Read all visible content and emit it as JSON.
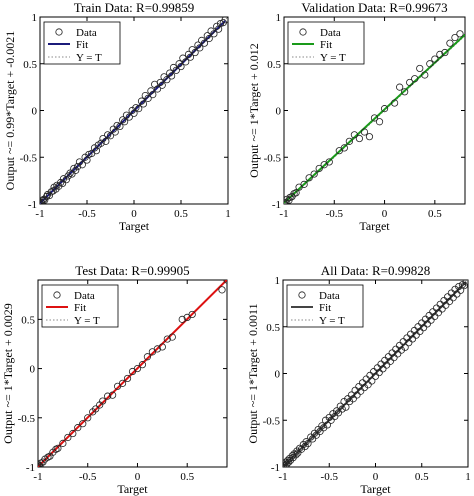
{
  "chart_data": [
    {
      "type": "scatter",
      "title": "Train Data: R=0.99859",
      "xlabel": "Target",
      "ylabel": "Output ~= 0.99*Target + -0.0021",
      "xlim": [
        -1,
        1
      ],
      "ylim": [
        -1,
        1
      ],
      "xticks": [
        "-1",
        "-0.5",
        "0",
        "0.5",
        "1"
      ],
      "yticks": [
        "-1",
        "-0.5",
        "0",
        "0.5",
        "1"
      ],
      "grid": false,
      "legend_position": "top-left",
      "legend": [
        "Data",
        "Fit",
        "Y = T"
      ],
      "fit": {
        "slope": 0.99,
        "intercept": -0.0021,
        "color": "#1b1b7a"
      },
      "data_range": [
        -1,
        0.97
      ],
      "series": [
        {
          "name": "Data",
          "type": "scatter",
          "x": [
            -1,
            -0.99,
            -0.98,
            -0.97,
            -0.96,
            -0.95,
            -0.93,
            -0.92,
            -0.9,
            -0.88,
            -0.86,
            -0.85,
            -0.83,
            -0.82,
            -0.8,
            -0.78,
            -0.76,
            -0.75,
            -0.72,
            -0.7,
            -0.68,
            -0.66,
            -0.64,
            -0.62,
            -0.6,
            -0.58,
            -0.55,
            -0.52,
            -0.5,
            -0.48,
            -0.45,
            -0.42,
            -0.4,
            -0.38,
            -0.35,
            -0.33,
            -0.3,
            -0.28,
            -0.25,
            -0.22,
            -0.2,
            -0.18,
            -0.15,
            -0.12,
            -0.1,
            -0.08,
            -0.05,
            -0.02,
            0,
            0.02,
            0.05,
            0.08,
            0.1,
            0.12,
            0.15,
            0.18,
            0.2,
            0.22,
            0.25,
            0.28,
            0.3,
            0.32,
            0.35,
            0.38,
            0.4,
            0.42,
            0.45,
            0.48,
            0.5,
            0.52,
            0.55,
            0.58,
            0.6,
            0.62,
            0.65,
            0.68,
            0.7,
            0.72,
            0.75,
            0.78,
            0.8,
            0.82,
            0.85,
            0.88,
            0.9,
            0.92,
            0.95,
            0.97
          ],
          "y": [
            -1,
            -0.98,
            -0.99,
            -0.96,
            -0.95,
            -0.96,
            -0.92,
            -0.9,
            -0.91,
            -0.87,
            -0.86,
            -0.82,
            -0.84,
            -0.8,
            -0.81,
            -0.77,
            -0.78,
            -0.73,
            -0.74,
            -0.7,
            -0.67,
            -0.68,
            -0.62,
            -0.64,
            -0.6,
            -0.55,
            -0.58,
            -0.5,
            -0.53,
            -0.47,
            -0.46,
            -0.4,
            -0.43,
            -0.37,
            -0.35,
            -0.3,
            -0.33,
            -0.26,
            -0.27,
            -0.2,
            -0.23,
            -0.16,
            -0.17,
            -0.1,
            -0.12,
            -0.05,
            -0.07,
            0,
            -0.03,
            0.03,
            0.02,
            0.1,
            0.07,
            0.16,
            0.13,
            0.21,
            0.17,
            0.28,
            0.23,
            0.3,
            0.27,
            0.36,
            0.33,
            0.4,
            0.37,
            0.46,
            0.43,
            0.5,
            0.47,
            0.56,
            0.52,
            0.6,
            0.57,
            0.65,
            0.62,
            0.7,
            0.67,
            0.75,
            0.72,
            0.8,
            0.77,
            0.85,
            0.82,
            0.9,
            0.87,
            0.93,
            0.94,
            0.97
          ]
        }
      ]
    },
    {
      "type": "scatter",
      "title": "Validation Data: R=0.99673",
      "xlabel": "Target",
      "ylabel": "Output ~= 1*Target + 0.012",
      "xlim": [
        -1,
        0.8
      ],
      "ylim": [
        -1,
        1
      ],
      "xticks": [
        "-1",
        "-0.5",
        "0",
        "0.5"
      ],
      "yticks": [
        "-1",
        "-0.5",
        "0",
        "0.5",
        "1"
      ],
      "grid": false,
      "legend_position": "top-left",
      "legend": [
        "Data",
        "Fit",
        "Y = T"
      ],
      "fit": {
        "slope": 1,
        "intercept": 0.012,
        "color": "#1a9a1a"
      },
      "data_range": [
        -1,
        0.8
      ],
      "series": [
        {
          "name": "Data",
          "type": "scatter",
          "x": [
            -1,
            -0.98,
            -0.97,
            -0.95,
            -0.94,
            -0.92,
            -0.9,
            -0.88,
            -0.85,
            -0.8,
            -0.75,
            -0.7,
            -0.65,
            -0.6,
            -0.55,
            -0.45,
            -0.4,
            -0.35,
            -0.3,
            -0.25,
            -0.2,
            -0.15,
            -0.1,
            -0.05,
            0,
            0.1,
            0.15,
            0.2,
            0.25,
            0.3,
            0.35,
            0.4,
            0.45,
            0.5,
            0.55,
            0.6,
            0.65,
            0.7,
            0.75
          ],
          "y": [
            -0.98,
            -0.99,
            -0.95,
            -0.96,
            -0.93,
            -0.92,
            -0.89,
            -0.88,
            -0.82,
            -0.79,
            -0.72,
            -0.68,
            -0.62,
            -0.58,
            -0.55,
            -0.43,
            -0.4,
            -0.33,
            -0.26,
            -0.3,
            -0.23,
            -0.28,
            -0.08,
            -0.12,
            0.02,
            0.08,
            0.25,
            0.2,
            0.3,
            0.34,
            0.45,
            0.38,
            0.5,
            0.55,
            0.6,
            0.62,
            0.72,
            0.78,
            0.82
          ]
        }
      ]
    },
    {
      "type": "scatter",
      "title": "Test Data: R=0.99905",
      "xlabel": "Target",
      "ylabel": "Output ~= 1*Target + 0.0029",
      "xlim": [
        -1,
        0.9
      ],
      "ylim": [
        -1,
        0.9
      ],
      "xticks": [
        "-1",
        "-0.5",
        "0",
        "0.5"
      ],
      "yticks": [
        "-1",
        "-0.5",
        "0",
        "0.5"
      ],
      "grid": false,
      "legend_position": "top-left",
      "legend": [
        "Data",
        "Fit",
        "Y = T"
      ],
      "fit": {
        "slope": 1,
        "intercept": 0.0029,
        "color": "#dd1111"
      },
      "data_range": [
        -1,
        0.9
      ],
      "series": [
        {
          "name": "Data",
          "type": "scatter",
          "x": [
            -1,
            -0.99,
            -0.98,
            -0.97,
            -0.95,
            -0.93,
            -0.9,
            -0.88,
            -0.85,
            -0.82,
            -0.8,
            -0.75,
            -0.7,
            -0.65,
            -0.6,
            -0.55,
            -0.5,
            -0.45,
            -0.42,
            -0.38,
            -0.35,
            -0.3,
            -0.25,
            -0.2,
            -0.15,
            -0.1,
            -0.05,
            0,
            0.05,
            0.1,
            0.15,
            0.2,
            0.25,
            0.3,
            0.35,
            0.45,
            0.5,
            0.55,
            0.85,
            0.9
          ],
          "y": [
            -1,
            -0.98,
            -0.99,
            -0.96,
            -0.95,
            -0.92,
            -0.9,
            -0.89,
            -0.85,
            -0.82,
            -0.81,
            -0.76,
            -0.7,
            -0.66,
            -0.6,
            -0.56,
            -0.5,
            -0.44,
            -0.41,
            -0.37,
            -0.33,
            -0.28,
            -0.27,
            -0.18,
            -0.15,
            -0.1,
            -0.03,
            0,
            0.04,
            0.12,
            0.17,
            0.2,
            0.22,
            0.3,
            0.32,
            0.5,
            0.52,
            0.55,
            0.8,
            0.9
          ]
        }
      ]
    },
    {
      "type": "scatter",
      "title": "All Data: R=0.99828",
      "xlabel": "Target",
      "ylabel": "Output ~= 1*Target + 0.0011",
      "xlim": [
        -1,
        1
      ],
      "ylim": [
        -1,
        1
      ],
      "xticks": [
        "-1",
        "-0.5",
        "0",
        "0.5",
        "1"
      ],
      "yticks": [
        "-1",
        "-0.5",
        "0",
        "0.5",
        "1"
      ],
      "grid": false,
      "legend_position": "top-left",
      "legend": [
        "Data",
        "Fit",
        "Y = T"
      ],
      "fit": {
        "slope": 1,
        "intercept": 0.0011,
        "color": "#444444"
      },
      "data_range": [
        -1,
        0.98
      ],
      "series": [
        {
          "name": "Data",
          "type": "scatter",
          "x": [
            -1,
            -0.99,
            -0.98,
            -0.97,
            -0.96,
            -0.95,
            -0.94,
            -0.93,
            -0.92,
            -0.9,
            -0.89,
            -0.88,
            -0.86,
            -0.85,
            -0.84,
            -0.82,
            -0.8,
            -0.78,
            -0.76,
            -0.75,
            -0.73,
            -0.7,
            -0.68,
            -0.66,
            -0.64,
            -0.62,
            -0.6,
            -0.58,
            -0.56,
            -0.54,
            -0.52,
            -0.5,
            -0.48,
            -0.46,
            -0.44,
            -0.42,
            -0.4,
            -0.38,
            -0.36,
            -0.34,
            -0.32,
            -0.3,
            -0.28,
            -0.26,
            -0.24,
            -0.22,
            -0.2,
            -0.18,
            -0.16,
            -0.14,
            -0.12,
            -0.1,
            -0.08,
            -0.06,
            -0.04,
            -0.02,
            0,
            0.02,
            0.04,
            0.06,
            0.08,
            0.1,
            0.12,
            0.14,
            0.16,
            0.18,
            0.2,
            0.22,
            0.24,
            0.26,
            0.28,
            0.3,
            0.32,
            0.34,
            0.36,
            0.38,
            0.4,
            0.42,
            0.44,
            0.46,
            0.48,
            0.5,
            0.52,
            0.54,
            0.56,
            0.58,
            0.6,
            0.62,
            0.64,
            0.66,
            0.68,
            0.7,
            0.72,
            0.74,
            0.76,
            0.78,
            0.8,
            0.82,
            0.84,
            0.86,
            0.88,
            0.9,
            0.92,
            0.94,
            0.96,
            0.98
          ],
          "y": [
            -1,
            -0.97,
            -0.99,
            -0.95,
            -0.97,
            -0.93,
            -0.95,
            -0.91,
            -0.93,
            -0.88,
            -0.9,
            -0.86,
            -0.87,
            -0.83,
            -0.85,
            -0.8,
            -0.81,
            -0.76,
            -0.78,
            -0.73,
            -0.75,
            -0.68,
            -0.7,
            -0.64,
            -0.66,
            -0.6,
            -0.62,
            -0.56,
            -0.58,
            -0.5,
            -0.55,
            -0.47,
            -0.5,
            -0.43,
            -0.46,
            -0.4,
            -0.42,
            -0.35,
            -0.38,
            -0.3,
            -0.36,
            -0.27,
            -0.3,
            -0.23,
            -0.27,
            -0.18,
            -0.23,
            -0.14,
            -0.19,
            -0.1,
            -0.15,
            -0.06,
            -0.12,
            -0.02,
            -0.08,
            0.02,
            -0.03,
            0.06,
            0.01,
            0.1,
            0.05,
            0.14,
            0.09,
            0.18,
            0.13,
            0.22,
            0.17,
            0.26,
            0.21,
            0.3,
            0.25,
            0.34,
            0.28,
            0.38,
            0.33,
            0.42,
            0.37,
            0.46,
            0.41,
            0.5,
            0.45,
            0.54,
            0.49,
            0.58,
            0.53,
            0.62,
            0.57,
            0.66,
            0.61,
            0.7,
            0.65,
            0.74,
            0.69,
            0.78,
            0.73,
            0.82,
            0.77,
            0.86,
            0.81,
            0.9,
            0.85,
            0.93,
            0.89,
            0.95,
            0.94,
            0.98
          ]
        }
      ]
    }
  ]
}
